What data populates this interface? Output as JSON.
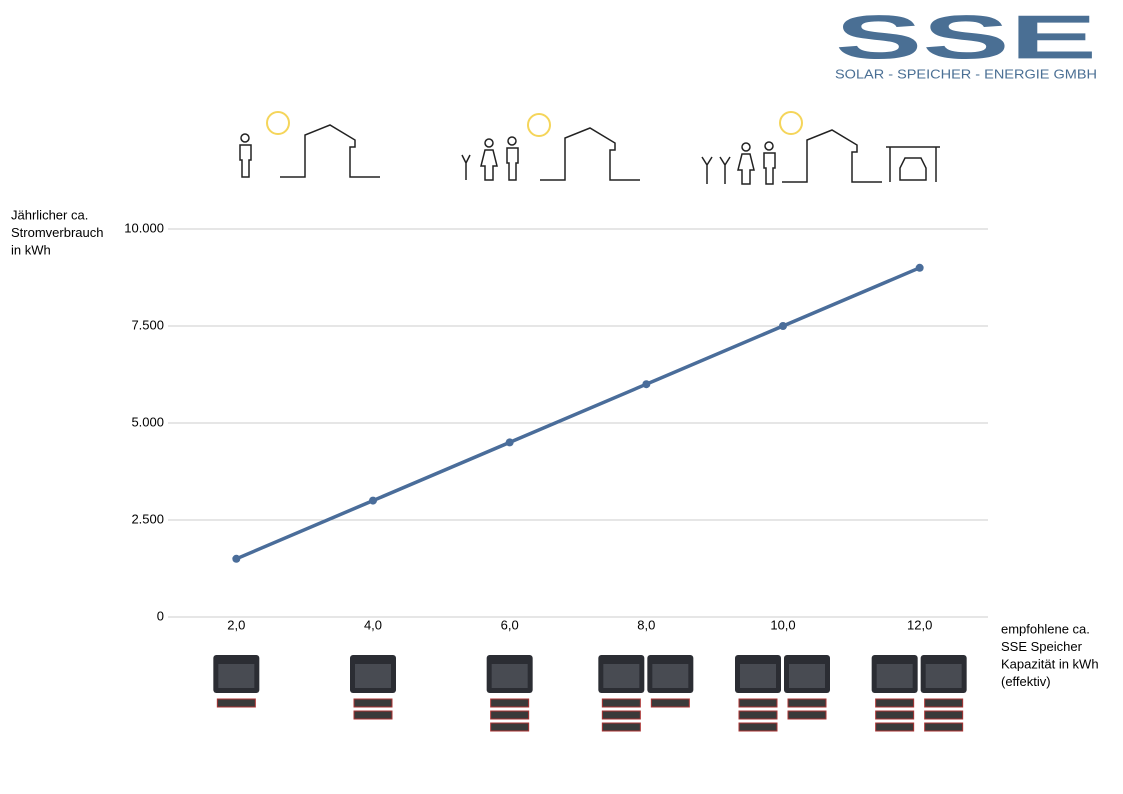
{
  "logo": {
    "brand": "SSE",
    "tagline": "SOLAR - SPEICHER - ENERGIE GMBH"
  },
  "chart_data": {
    "type": "line",
    "y_label": [
      "Jährlicher ca.",
      "Stromverbrauch",
      "in kWh"
    ],
    "x_label": [
      "empfohlene ca.",
      "SSE Speicher",
      "Kapazität in kWh",
      "(effektiv)"
    ],
    "categories": [
      "2,0",
      "4,0",
      "6,0",
      "8,0",
      "10,0",
      "12,0"
    ],
    "series": [
      {
        "color": "#4a6d9a",
        "values": [
          1500,
          3000,
          4500,
          6000,
          7500,
          9000
        ]
      }
    ],
    "ylim": [
      0,
      10000
    ],
    "yticks": [
      0,
      {
        "value": 2500,
        "label": "2.500"
      },
      {
        "value": 5000,
        "label": "5.000"
      },
      {
        "value": 7500,
        "label": "7.500"
      },
      {
        "value": 10000,
        "label": "10.000"
      }
    ],
    "grid": true
  }
}
